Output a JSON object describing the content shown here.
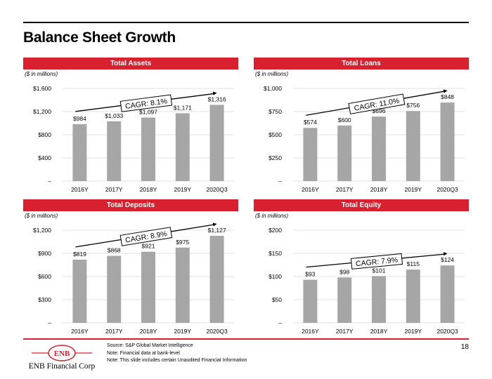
{
  "page": {
    "title": "Balance Sheet Growth",
    "page_number": "18",
    "notes": [
      "Source: S&P Global Market Intelligence",
      "Note:    Financial data at bank-level",
      "Note:  This slide includes certain Unaudited Financial Information"
    ],
    "logo_text": "ENB",
    "company": "ENB Financial Corp"
  },
  "colors": {
    "accent": "#d9202f",
    "bar": "#a6a6a6"
  },
  "chart_data": [
    {
      "type": "bar",
      "title": "Total Assets",
      "unit_note": "($ in millions)",
      "categories": [
        "2016Y",
        "2017Y",
        "2018Y",
        "2019Y",
        "2020Q3"
      ],
      "values": [
        984,
        1033,
        1097,
        1171,
        1316
      ],
      "labels": [
        "$984",
        "$1,033",
        "$1,097",
        "$1,171",
        "$1,316"
      ],
      "yticks": [
        "–",
        "$400",
        "$800",
        "$1,200",
        "$1,600"
      ],
      "ylim": [
        0,
        1600
      ],
      "cagr": "CAGR: 8.1%"
    },
    {
      "type": "bar",
      "title": "Total Loans",
      "unit_note": "($ in millions)",
      "categories": [
        "2016Y",
        "2017Y",
        "2018Y",
        "2019Y",
        "2020Q3"
      ],
      "values": [
        574,
        600,
        696,
        756,
        848
      ],
      "labels": [
        "$574",
        "$600",
        "$696",
        "$756",
        "$848"
      ],
      "yticks": [
        "–",
        "$250",
        "$500",
        "$750",
        "$1,000"
      ],
      "ylim": [
        0,
        1000
      ],
      "cagr": "CAGR: 11.0%"
    },
    {
      "type": "bar",
      "title": "Total Deposits",
      "unit_note": "($ in millions)",
      "categories": [
        "2016Y",
        "2017Y",
        "2018Y",
        "2019Y",
        "2020Q3"
      ],
      "values": [
        819,
        868,
        921,
        975,
        1127
      ],
      "labels": [
        "$819",
        "$868",
        "$921",
        "$975",
        "$1,127"
      ],
      "yticks": [
        "–",
        "$300",
        "$600",
        "$900",
        "$1,200"
      ],
      "ylim": [
        0,
        1200
      ],
      "cagr": "CAGR: 8.9%"
    },
    {
      "type": "bar",
      "title": "Total Equity",
      "unit_note": "($ in millions)",
      "categories": [
        "2016Y",
        "2017Y",
        "2018Y",
        "2019Y",
        "2020Q3"
      ],
      "values": [
        93,
        98,
        101,
        115,
        124
      ],
      "labels": [
        "$93",
        "$98",
        "$101",
        "$115",
        "$124"
      ],
      "yticks": [
        "–",
        "$50",
        "$100",
        "$150",
        "$200"
      ],
      "ylim": [
        0,
        200
      ],
      "cagr": "CAGR: 7.9%"
    }
  ]
}
